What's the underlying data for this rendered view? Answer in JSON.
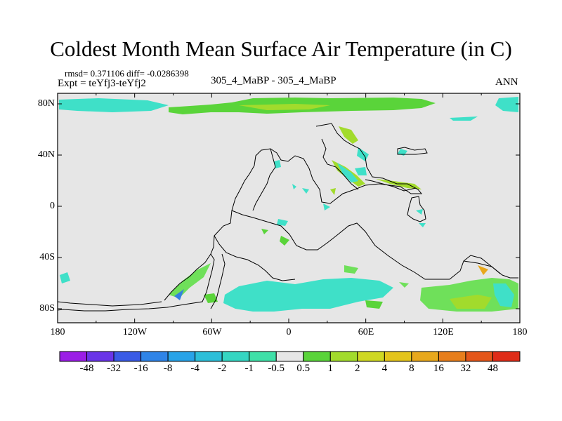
{
  "title": "Coldest Month Mean Surface Air Temperature (in C)",
  "stats": {
    "rmsd_line": "rmsd= 0.371106 diff= -0.0286398"
  },
  "expt_line": "Expt = teYfj3-teYfj2",
  "center_line": "305_4_MaBP - 305_4_MaBP",
  "season": "ANN",
  "lat_ticks": [
    "80N",
    "40N",
    "0",
    "40S",
    "80S"
  ],
  "lon_ticks": [
    "180",
    "120W",
    "60W",
    "0",
    "60E",
    "120E",
    "180"
  ],
  "colorbar": {
    "labels": [
      "-48",
      "-32",
      "-16",
      "-8",
      "-4",
      "-2",
      "-1",
      "-0.5",
      "0.5",
      "1",
      "2",
      "4",
      "8",
      "16",
      "32",
      "48"
    ],
    "colors": [
      "#9b1ee6",
      "#6a35e8",
      "#3a5be6",
      "#2f84e8",
      "#28a3e8",
      "#2cbfd9",
      "#35d6c2",
      "#3fe0a8",
      "#e6e6e6",
      "#5ad43a",
      "#a2db2c",
      "#cfd822",
      "#e3c41b",
      "#e8a81c",
      "#e77e1c",
      "#e4561a",
      "#df2c18"
    ]
  },
  "field_colors": {
    "background": "#e6e6e6",
    "cyan": "#3fe0c8",
    "light_green": "#6fe05a",
    "green": "#5ad43a",
    "yellow_green": "#a2db2c",
    "yellow": "#cfd822",
    "orange": "#e8a81c",
    "teal": "#2cc0d6",
    "blue": "#3580e0"
  }
}
